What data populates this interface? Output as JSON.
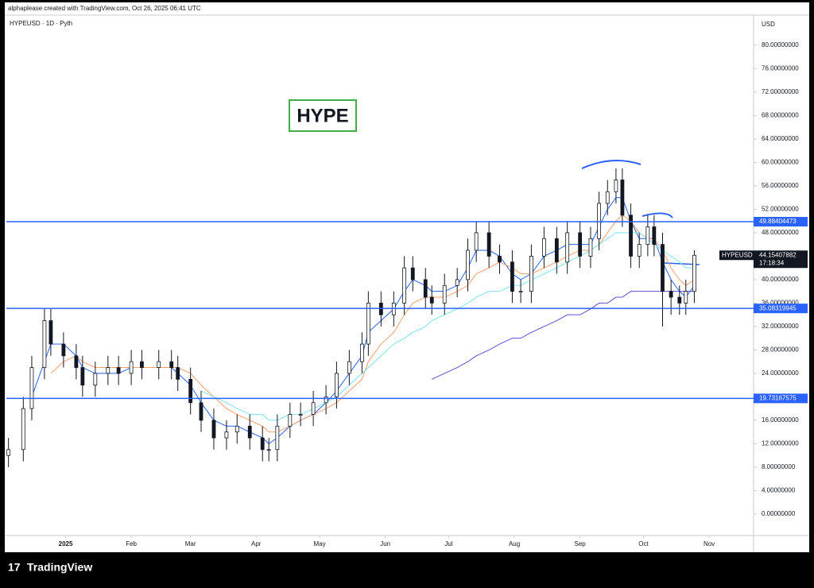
{
  "header": "alphaplease created with TradingView.com, Oct 26, 2025 06:41 UTC",
  "footer": "TradingView",
  "chart_data": {
    "type": "candlestick",
    "symbol": "HYPEUSD · 1D · Pyth",
    "currency": "USD",
    "annotation": "HYPE",
    "symbol_tag": "HYPEUSD",
    "countdown": "17:18:34",
    "xlim": [
      -28,
      325
    ],
    "xticks": [
      {
        "value": 0,
        "label": "2025"
      },
      {
        "value": 31,
        "label": "Feb"
      },
      {
        "value": 59,
        "label": "Mar"
      },
      {
        "value": 90,
        "label": "Apr"
      },
      {
        "value": 120,
        "label": "May"
      },
      {
        "value": 151,
        "label": "Jun"
      },
      {
        "value": 181,
        "label": "Jul"
      },
      {
        "value": 212,
        "label": "Aug"
      },
      {
        "value": 243,
        "label": "Sep"
      },
      {
        "value": 273,
        "label": "Oct"
      },
      {
        "value": 304,
        "label": "Nov"
      }
    ],
    "ylim": [
      -3.4,
      85
    ],
    "yticks": [
      {
        "value": 0,
        "label": "0.00000000"
      },
      {
        "value": 4,
        "label": "4.00000000"
      },
      {
        "value": 8,
        "label": "8.00000000"
      },
      {
        "value": 12,
        "label": "12.00000000"
      },
      {
        "value": 16,
        "label": "16.00000000"
      },
      {
        "value": 20,
        "label": "20.00000000"
      },
      {
        "value": 24,
        "label": "24.00000000"
      },
      {
        "value": 28,
        "label": "28.00000000"
      },
      {
        "value": 32,
        "label": "32.00000000"
      },
      {
        "value": 36,
        "label": "36.00000000"
      },
      {
        "value": 40,
        "label": "40.00000000"
      },
      {
        "value": 44,
        "label": "44.00000000"
      },
      {
        "value": 48,
        "label": "48.00000000"
      },
      {
        "value": 52,
        "label": "52.00000000"
      },
      {
        "value": 56,
        "label": "56.00000000"
      },
      {
        "value": 60,
        "label": "60.00000000"
      },
      {
        "value": 64,
        "label": "64.00000000"
      },
      {
        "value": 68,
        "label": "68.00000000"
      },
      {
        "value": 72,
        "label": "72.00000000"
      },
      {
        "value": 76,
        "label": "76.00000000"
      },
      {
        "value": 80,
        "label": "80.00000000"
      }
    ],
    "levels": [
      49.88404473,
      35.08319945,
      19.73167575
    ],
    "level_color": "#2962ff",
    "up_color": "#ffffff",
    "down_color": "#131722",
    "x": [
      -27,
      -20,
      -16,
      -10,
      -7,
      -1,
      5,
      8,
      14,
      20,
      25,
      31,
      36,
      44,
      50,
      53,
      59,
      64,
      70,
      76,
      81,
      87,
      93,
      96,
      100,
      106,
      111,
      117,
      123,
      128,
      134,
      140,
      143,
      149,
      155,
      160,
      164,
      170,
      173,
      179,
      185,
      190,
      194,
      200,
      205,
      211,
      215,
      220,
      226,
      232,
      237,
      243,
      248,
      252,
      256,
      260,
      263,
      267,
      271,
      275,
      278,
      282,
      286,
      290,
      293,
      297
    ],
    "open": [
      10,
      11,
      18,
      25,
      33,
      29,
      27,
      25,
      22,
      24,
      25,
      24,
      26,
      25,
      26,
      25,
      23,
      19,
      16,
      13,
      14,
      15,
      13,
      11,
      11,
      15,
      17,
      17,
      19,
      20,
      24,
      26,
      29,
      36,
      34,
      36,
      42,
      40,
      37,
      36,
      39,
      40,
      45,
      48,
      44,
      43,
      38,
      38,
      44,
      47,
      43,
      48,
      44,
      47,
      53,
      55,
      57,
      51,
      44,
      46,
      49,
      46,
      38,
      37,
      36,
      38
    ],
    "high": [
      13,
      20,
      27,
      35,
      35,
      31,
      29,
      27,
      26,
      27,
      27,
      28,
      28,
      28,
      28,
      27,
      25,
      21,
      18,
      16,
      17,
      17,
      15,
      13,
      17,
      19,
      19,
      21,
      22,
      26,
      28,
      31,
      38,
      38,
      38,
      44,
      44,
      42,
      39,
      41,
      42,
      47,
      50,
      50,
      46,
      45,
      40,
      46,
      49,
      49,
      50,
      50,
      49,
      55,
      57,
      59,
      59,
      53,
      48,
      51,
      51,
      48,
      40,
      39,
      40,
      45
    ],
    "low": [
      8,
      9,
      16,
      23,
      27,
      25,
      23,
      20,
      20,
      22,
      22,
      22,
      23,
      23,
      23,
      21,
      17,
      14,
      11,
      11,
      12,
      11,
      9,
      9,
      9,
      13,
      15,
      15,
      17,
      18,
      22,
      24,
      27,
      32,
      32,
      34,
      38,
      35,
      34,
      34,
      37,
      38,
      43,
      42,
      41,
      36,
      36,
      36,
      42,
      41,
      41,
      42,
      42,
      45,
      51,
      53,
      49,
      42,
      42,
      44,
      44,
      32,
      34,
      34,
      34,
      36
    ],
    "close": [
      11,
      18,
      25,
      33,
      29,
      27,
      25,
      22,
      24,
      25,
      24,
      26,
      25,
      26,
      25,
      23,
      19,
      16,
      13,
      14,
      15,
      13,
      11,
      11,
      15,
      17,
      17,
      19,
      20,
      24,
      26,
      29,
      36,
      34,
      36,
      42,
      40,
      37,
      36,
      39,
      40,
      45,
      48,
      44,
      43,
      38,
      38,
      44,
      47,
      43,
      48,
      44,
      47,
      53,
      55,
      57,
      51,
      44,
      46,
      49,
      46,
      38,
      37,
      36,
      38,
      44.15407882
    ],
    "series": [
      {
        "color": "#2962ff",
        "values": [
          null,
          null,
          20,
          26,
          29,
          29,
          27,
          25,
          24,
          24,
          24,
          25,
          25,
          25,
          25,
          24,
          22,
          19,
          16,
          15,
          15,
          14,
          13,
          12,
          13,
          15,
          16,
          17,
          19,
          21,
          24,
          27,
          31,
          33,
          35,
          38,
          40,
          39,
          38,
          38,
          39,
          42,
          45,
          45,
          44,
          41,
          40,
          41,
          44,
          45,
          46,
          46,
          46,
          49,
          52,
          54,
          54,
          50,
          47,
          47,
          47,
          43,
          40,
          38,
          37,
          39
        ]
      },
      {
        "color": "#f7a072",
        "values": [
          null,
          null,
          null,
          null,
          24,
          26,
          27,
          26,
          25,
          25,
          25,
          25,
          25,
          25,
          25,
          25,
          24,
          22,
          20,
          18,
          17,
          16,
          15,
          14,
          14,
          15,
          16,
          17,
          18,
          19,
          21,
          23,
          26,
          29,
          31,
          34,
          36,
          37,
          37,
          37,
          38,
          39,
          41,
          42,
          43,
          42,
          41,
          41,
          42,
          43,
          44,
          45,
          45,
          46,
          48,
          50,
          51,
          50,
          48,
          47,
          47,
          45,
          42,
          40,
          39,
          40
        ]
      },
      {
        "color": "#7fe3f0",
        "values": [
          null,
          null,
          null,
          null,
          null,
          null,
          null,
          null,
          null,
          null,
          null,
          null,
          null,
          null,
          null,
          null,
          null,
          21,
          20,
          19,
          18,
          17,
          17,
          16,
          16,
          17,
          17,
          18,
          19,
          20,
          22,
          24,
          25,
          27,
          29,
          30,
          31,
          32,
          33,
          34,
          35,
          36,
          37,
          38,
          38,
          39,
          39,
          40,
          41,
          42,
          43,
          44,
          45,
          46,
          47,
          48,
          48,
          48,
          48,
          47,
          46,
          45,
          44,
          43,
          42,
          42
        ]
      },
      {
        "color": "#5b4fd6",
        "values": [
          null,
          null,
          null,
          null,
          null,
          null,
          null,
          null,
          null,
          null,
          null,
          null,
          null,
          null,
          null,
          null,
          null,
          null,
          null,
          null,
          null,
          null,
          null,
          null,
          null,
          null,
          null,
          null,
          null,
          null,
          null,
          null,
          null,
          null,
          null,
          null,
          null,
          null,
          23,
          24,
          25,
          26,
          27,
          28,
          29,
          30,
          30,
          31,
          32,
          33,
          34,
          34,
          35,
          36,
          36,
          37,
          37,
          38,
          38,
          38,
          38,
          38,
          38,
          38,
          38,
          38
        ]
      }
    ]
  }
}
